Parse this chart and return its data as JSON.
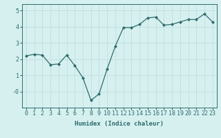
{
  "x": [
    0,
    1,
    2,
    3,
    4,
    5,
    6,
    7,
    8,
    9,
    10,
    11,
    12,
    13,
    14,
    15,
    16,
    17,
    18,
    19,
    20,
    21,
    22,
    23
  ],
  "y": [
    2.2,
    2.3,
    2.25,
    1.65,
    1.7,
    2.25,
    1.6,
    0.85,
    -0.55,
    -0.15,
    1.4,
    2.8,
    3.95,
    3.95,
    4.15,
    4.55,
    4.6,
    4.1,
    4.15,
    4.3,
    4.45,
    4.45,
    4.8,
    4.3
  ],
  "line_color": "#2e6b6b",
  "marker": "D",
  "marker_size": 2.0,
  "bg_color": "#d6f0f0",
  "grid_color": "#c0dede",
  "xlabel": "Humidex (Indice chaleur)",
  "xlim": [
    -0.5,
    23.5
  ],
  "ylim": [
    -1.0,
    5.4
  ],
  "yticks": [
    0,
    1,
    2,
    3,
    4,
    5
  ],
  "ytick_labels": [
    "-0",
    "1",
    "2",
    "3",
    "4",
    "5"
  ],
  "xticks": [
    0,
    1,
    2,
    3,
    4,
    5,
    6,
    7,
    8,
    9,
    10,
    11,
    12,
    13,
    14,
    15,
    16,
    17,
    18,
    19,
    20,
    21,
    22,
    23
  ],
  "tick_color": "#2e6b6b",
  "label_fontsize": 6.5,
  "tick_fontsize": 6.0
}
